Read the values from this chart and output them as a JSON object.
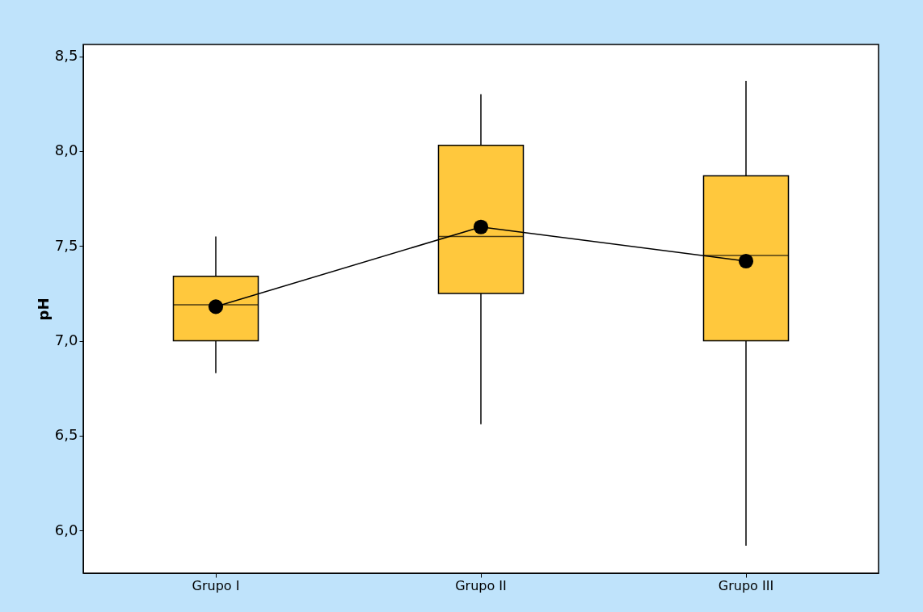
{
  "chart_data": {
    "type": "box",
    "ylabel": "pH",
    "categories": [
      "Grupo I",
      "Grupo II",
      "Grupo III"
    ],
    "ylim": [
      5.775,
      8.562
    ],
    "yticks": [
      {
        "value": 6.0,
        "label": "6,0"
      },
      {
        "value": 6.5,
        "label": "6,5"
      },
      {
        "value": 7.0,
        "label": "7,0"
      },
      {
        "value": 7.5,
        "label": "7,5"
      },
      {
        "value": 8.0,
        "label": "8,0"
      },
      {
        "value": 8.5,
        "label": "8,5"
      }
    ],
    "series": [
      {
        "type": "box",
        "color": "#ffc83d",
        "boxes": [
          {
            "low": 6.83,
            "q1": 7.0,
            "median": 7.19,
            "q3": 7.34,
            "high": 7.55
          },
          {
            "low": 6.56,
            "q1": 7.25,
            "median": 7.55,
            "q3": 8.03,
            "high": 8.3
          },
          {
            "low": 5.92,
            "q1": 7.0,
            "median": 7.45,
            "q3": 7.87,
            "high": 8.37
          }
        ]
      },
      {
        "type": "line",
        "color": "#000000",
        "marker": "circle",
        "values": [
          7.18,
          7.6,
          7.42
        ]
      }
    ]
  }
}
